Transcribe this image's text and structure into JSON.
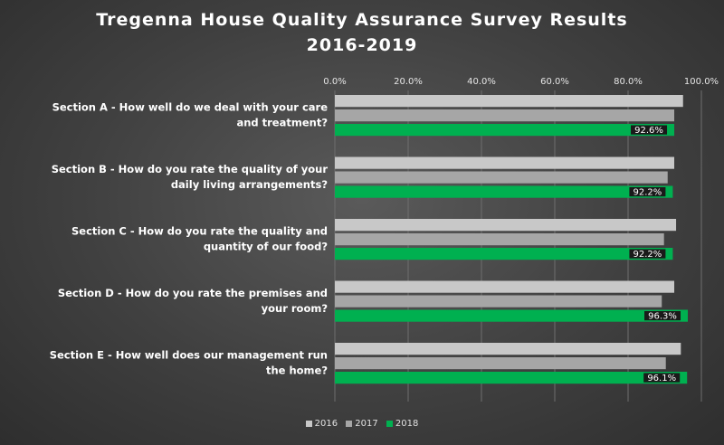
{
  "title_line1": "Tregenna House Quality Assurance Survey Results",
  "title_line2": "2016-2019",
  "chart_data": {
    "type": "bar",
    "orientation": "horizontal",
    "xlim": [
      0,
      100
    ],
    "x_ticks": [
      "0.0%",
      "20.0%",
      "40.0%",
      "60.0%",
      "80.0%",
      "100.0%"
    ],
    "x_tick_values": [
      0,
      20,
      40,
      60,
      80,
      100
    ],
    "grid": true,
    "legend_position": "bottom",
    "categories": [
      [
        "Section A - How well do we deal with your care",
        "and treatment?"
      ],
      [
        "Section B - How do you rate the quality of your",
        "daily living arrangements?"
      ],
      [
        "Section C - How do you rate the quality and",
        "quantity of our food?"
      ],
      [
        "Section D - How do you rate the premises and",
        "your room?"
      ],
      [
        "Section E - How well does our management run",
        "the home?"
      ]
    ],
    "series": [
      {
        "name": "2016",
        "color": "#c8c8c8",
        "values": [
          95.0,
          92.6,
          93.1,
          92.6,
          94.4
        ]
      },
      {
        "name": "2017",
        "color": "#a6a6a6",
        "values": [
          92.6,
          90.8,
          89.8,
          89.2,
          90.3
        ]
      },
      {
        "name": "2018",
        "color": "#00b050",
        "values": [
          92.6,
          92.2,
          92.2,
          96.3,
          96.1
        ],
        "labels": [
          "92.6%",
          "92.2%",
          "92.2%",
          "96.3%",
          "96.1%"
        ]
      }
    ]
  }
}
